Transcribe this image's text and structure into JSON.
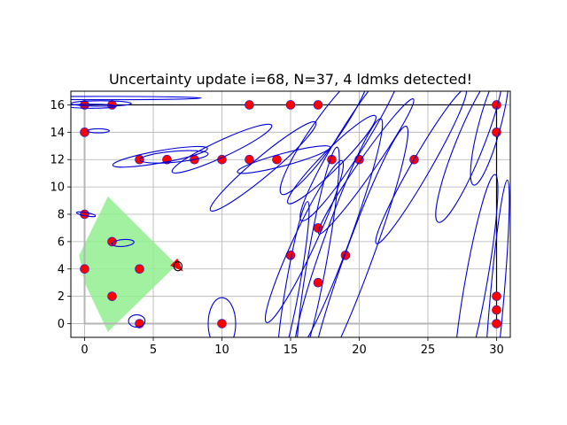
{
  "chart_data": {
    "type": "scatter",
    "title": "Uncertainty update i=68, N=37, 4 ldmks detected!",
    "xlabel": "",
    "ylabel": "",
    "xlim": [
      -1,
      31
    ],
    "ylim": [
      -1,
      17
    ],
    "x_ticks": [
      0,
      5,
      10,
      15,
      20,
      25,
      30
    ],
    "y_ticks": [
      0,
      2,
      4,
      6,
      8,
      10,
      12,
      14,
      16
    ],
    "grid": true,
    "colors": {
      "landmark_fill": "#ff0000",
      "landmark_edge": "#1f1fd0",
      "ellipse": "#0000dd",
      "fov": "#90ee90",
      "grid": "#b0b0b0",
      "map_border": "#000000",
      "map_bottom": "#b5b5b5",
      "robot": "#ff0000",
      "robot_ellipse": "#000000"
    },
    "landmarks": [
      {
        "x": 0,
        "y": 16
      },
      {
        "x": 2,
        "y": 16
      },
      {
        "x": 0,
        "y": 14
      },
      {
        "x": 4,
        "y": 12
      },
      {
        "x": 6,
        "y": 12
      },
      {
        "x": 8,
        "y": 12
      },
      {
        "x": 10,
        "y": 12
      },
      {
        "x": 12,
        "y": 12
      },
      {
        "x": 14,
        "y": 12
      },
      {
        "x": 18,
        "y": 12
      },
      {
        "x": 20,
        "y": 12
      },
      {
        "x": 24,
        "y": 12
      },
      {
        "x": 12,
        "y": 16
      },
      {
        "x": 15,
        "y": 16
      },
      {
        "x": 17,
        "y": 16
      },
      {
        "x": 30,
        "y": 16
      },
      {
        "x": 30,
        "y": 14
      },
      {
        "x": 0,
        "y": 8
      },
      {
        "x": 2,
        "y": 6
      },
      {
        "x": 0,
        "y": 4
      },
      {
        "x": 4,
        "y": 4
      },
      {
        "x": 2,
        "y": 2
      },
      {
        "x": 4,
        "y": 0
      },
      {
        "x": 10,
        "y": 0
      },
      {
        "x": 17,
        "y": 7
      },
      {
        "x": 15,
        "y": 5
      },
      {
        "x": 19,
        "y": 5
      },
      {
        "x": 17,
        "y": 3
      },
      {
        "x": 30,
        "y": 2
      },
      {
        "x": 30,
        "y": 1
      },
      {
        "x": 30,
        "y": 0
      }
    ],
    "uncertainty_ellipses": [
      {
        "cx": 1.5,
        "cy": 16.5,
        "rx": 7.0,
        "ry": 0.12,
        "angle": 0
      },
      {
        "cx": 0.5,
        "cy": 15.9,
        "rx": 1.8,
        "ry": 0.15,
        "angle": 0
      },
      {
        "cx": 1.2,
        "cy": 16.1,
        "rx": 2.2,
        "ry": 0.2,
        "angle": 0
      },
      {
        "cx": 1.0,
        "cy": 14.1,
        "rx": 0.8,
        "ry": 0.15,
        "angle": 0
      },
      {
        "cx": 5.5,
        "cy": 12.2,
        "rx": 3.5,
        "ry": 0.45,
        "angle": -10
      },
      {
        "cx": 6.5,
        "cy": 12.2,
        "rx": 2.5,
        "ry": 0.4,
        "angle": -5
      },
      {
        "cx": 10.0,
        "cy": 12.8,
        "rx": 4.0,
        "ry": 0.6,
        "angle": -25
      },
      {
        "cx": 13.0,
        "cy": 11.5,
        "rx": 5.0,
        "ry": 0.7,
        "angle": -40
      },
      {
        "cx": 14.5,
        "cy": 12.0,
        "rx": 3.5,
        "ry": 0.45,
        "angle": -15
      },
      {
        "cx": 18.0,
        "cy": 12.0,
        "rx": 4.5,
        "ry": 0.7,
        "angle": -45
      },
      {
        "cx": 20.5,
        "cy": 11.5,
        "rx": 6.0,
        "ry": 0.6,
        "angle": -55
      },
      {
        "cx": 24.5,
        "cy": 11.5,
        "rx": 6.5,
        "ry": 0.7,
        "angle": -60
      },
      {
        "cx": 17.5,
        "cy": 14.0,
        "rx": 5.5,
        "ry": 1.0,
        "angle": -55
      },
      {
        "cx": 19.5,
        "cy": 13.5,
        "rx": 7.0,
        "ry": 1.0,
        "angle": -58
      },
      {
        "cx": 28.0,
        "cy": 13.0,
        "rx": 6.0,
        "ry": 1.0,
        "angle": -68
      },
      {
        "cx": 29.5,
        "cy": 14.5,
        "rx": 4.5,
        "ry": 0.8,
        "angle": -75
      },
      {
        "cx": 0.1,
        "cy": 8.0,
        "rx": 0.7,
        "ry": 0.12,
        "angle": 10
      },
      {
        "cx": 2.8,
        "cy": 5.9,
        "rx": 0.8,
        "ry": 0.25,
        "angle": -5
      },
      {
        "cx": 3.8,
        "cy": 0.2,
        "rx": 0.6,
        "ry": 0.45,
        "angle": 0
      },
      {
        "cx": 10.0,
        "cy": 0.0,
        "rx": 1.0,
        "ry": 1.9,
        "angle": 0
      },
      {
        "cx": 16.0,
        "cy": 6.0,
        "rx": 6.5,
        "ry": 0.8,
        "angle": -65
      },
      {
        "cx": 18.5,
        "cy": 6.5,
        "rx": 9.0,
        "ry": 0.9,
        "angle": -70
      },
      {
        "cx": 20.0,
        "cy": 5.0,
        "rx": 10.0,
        "ry": 1.0,
        "angle": -70
      },
      {
        "cx": 17.0,
        "cy": 5.0,
        "rx": 8.0,
        "ry": 0.7,
        "angle": -80
      },
      {
        "cx": 15.2,
        "cy": 3.0,
        "rx": 6.0,
        "ry": 0.5,
        "angle": -80
      },
      {
        "cx": 28.5,
        "cy": 3.0,
        "rx": 8.0,
        "ry": 0.8,
        "angle": -80
      },
      {
        "cx": 30.0,
        "cy": 1.5,
        "rx": 9.0,
        "ry": 0.5,
        "angle": -85
      }
    ],
    "fov_polygon": [
      {
        "x": 1.7,
        "y": 9.3
      },
      {
        "x": 6.7,
        "y": 4.3
      },
      {
        "x": 1.7,
        "y": -0.6
      },
      {
        "x": 0.0,
        "y": 3.0
      },
      {
        "x": -0.4,
        "y": 5.0
      }
    ],
    "robot": {
      "x": 6.7,
      "y": 4.3,
      "heading_deg": -45
    },
    "robot_ellipse": {
      "cx": 6.8,
      "cy": 4.2,
      "rx": 0.3,
      "ry": 0.33,
      "angle": 0
    },
    "map_border": {
      "x": [
        0,
        30
      ],
      "y": [
        0,
        16
      ]
    }
  }
}
